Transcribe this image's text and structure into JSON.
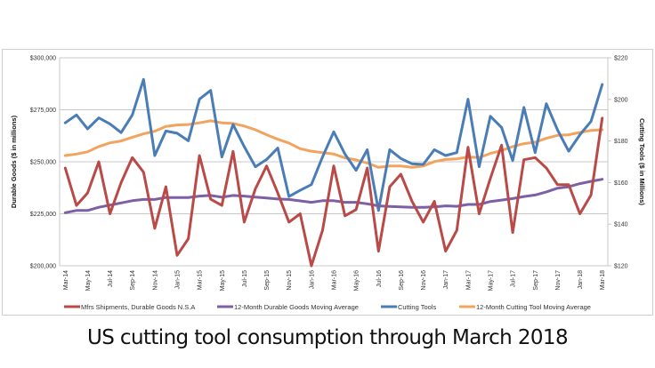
{
  "caption": "US cutting tool consumption through March 2018",
  "chart_data": {
    "type": "line",
    "title": "",
    "categories": [
      "Mar-14",
      "Apr-14",
      "May-14",
      "Jun-14",
      "Jul-14",
      "Aug-14",
      "Sep-14",
      "Oct-14",
      "Nov-14",
      "Dec-14",
      "Jan-15",
      "Feb-15",
      "Mar-15",
      "Apr-15",
      "May-15",
      "Jun-15",
      "Jul-15",
      "Aug-15",
      "Sep-15",
      "Oct-15",
      "Nov-15",
      "Dec-15",
      "Jan-16",
      "Feb-16",
      "Mar-16",
      "Apr-16",
      "May-16",
      "Jun-16",
      "Jul-16",
      "Aug-16",
      "Sep-16",
      "Oct-16",
      "Nov-16",
      "Dec-16",
      "Jan-17",
      "Feb-17",
      "Mar-17",
      "Apr-17",
      "May-17",
      "Jun-17",
      "Jul-17",
      "Aug-17",
      "Sep-17",
      "Oct-17",
      "Nov-17",
      "Dec-17",
      "Jan-18",
      "Feb-18",
      "Mar-18"
    ],
    "x_tick_labels": [
      "Mar-14",
      "May-14",
      "Jul-14",
      "Sep-14",
      "Nov-14",
      "Jan-15",
      "Mar-15",
      "May-15",
      "Jul-15",
      "Sep-15",
      "Nov-15",
      "Jan-16",
      "Mar-16",
      "May-16",
      "Jul-16",
      "Sep-16",
      "Nov-16",
      "Jan-17",
      "Mar-17",
      "May-17",
      "Jul-17",
      "Sep-17",
      "Nov-17",
      "Jan-18",
      "Mar-18"
    ],
    "y_left": {
      "label": "Durable Goods ($ in millions)",
      "range": [
        200000,
        300000
      ],
      "tick_labels": [
        "$300,000",
        "$275,000",
        "$250,000",
        "$225,000",
        "$200,000"
      ],
      "ticks": [
        300000,
        275000,
        250000,
        225000,
        200000
      ]
    },
    "y_right": {
      "label": "Cutting Tools ($ in Millions)",
      "range": [
        120,
        220
      ],
      "tick_labels": [
        "$220",
        "$200",
        "$180",
        "$160",
        "$140",
        "$120"
      ],
      "ticks": [
        220,
        200,
        180,
        160,
        140,
        120
      ]
    },
    "grid": true,
    "legend_placement": "bottom",
    "series": [
      {
        "name": "Mfrs Shipments, Durable Goods N.S.A",
        "axis": "left",
        "color": "#b94a48",
        "values": [
          247000,
          229000,
          235000,
          250000,
          225000,
          240000,
          252000,
          245000,
          218000,
          238000,
          205000,
          213000,
          253000,
          232000,
          229000,
          255000,
          221000,
          237000,
          248000,
          235000,
          221000,
          225000,
          200000,
          217000,
          248000,
          224000,
          227000,
          247000,
          207000,
          238000,
          244000,
          231000,
          221000,
          231000,
          207000,
          217000,
          257000,
          225000,
          242000,
          258000,
          216000,
          251000,
          252000,
          247000,
          239000,
          239000,
          225000,
          234000,
          271000
        ]
      },
      {
        "name": "12-Month Durable Goods Moving Average",
        "axis": "left",
        "color": "#7d5fa6",
        "values": [
          225500,
          226600,
          226600,
          228100,
          229200,
          230200,
          231300,
          231900,
          231900,
          232800,
          232800,
          232800,
          233500,
          233800,
          233000,
          233800,
          233500,
          233000,
          232600,
          232100,
          231900,
          231200,
          230500,
          231300,
          231300,
          230500,
          230500,
          229800,
          228800,
          228500,
          228300,
          228100,
          228100,
          228300,
          228800,
          228600,
          229500,
          229500,
          230900,
          231600,
          232300,
          233300,
          234000,
          235500,
          237300,
          238000,
          239500,
          240600,
          241600
        ]
      },
      {
        "name": "Cutting Tools",
        "axis": "right",
        "color": "#4a7db6",
        "values": [
          188.7,
          192.5,
          185.8,
          191.1,
          188.2,
          184.0,
          192.5,
          209.6,
          173.0,
          184.8,
          183.7,
          180.1,
          200.1,
          204.3,
          172.3,
          187.9,
          177.3,
          167.6,
          171.1,
          176.6,
          153.3,
          156.3,
          159.0,
          172.3,
          184.4,
          173.7,
          165.9,
          175.8,
          146.6,
          175.8,
          171.6,
          169.0,
          168.7,
          175.8,
          173.0,
          174.4,
          200.1,
          167.6,
          191.9,
          186.5,
          170.6,
          196.1,
          174.4,
          197.9,
          185.4,
          175.1,
          183.0,
          189.4,
          207.2
        ]
      },
      {
        "name": "12-Month Cutting Tool Moving Average",
        "axis": "right",
        "color": "#f2a45e",
        "values": [
          173.0,
          173.7,
          174.8,
          177.3,
          179.1,
          180.0,
          181.8,
          183.4,
          184.7,
          187.0,
          187.7,
          187.9,
          188.7,
          189.7,
          188.7,
          188.4,
          187.2,
          185.4,
          183.0,
          180.8,
          179.0,
          176.3,
          175.1,
          174.4,
          173.7,
          171.9,
          170.9,
          169.4,
          167.3,
          168.0,
          168.0,
          167.3,
          168.0,
          170.1,
          171.1,
          171.4,
          172.3,
          172.0,
          174.0,
          175.4,
          177.3,
          178.7,
          179.4,
          181.3,
          182.7,
          183.0,
          184.1,
          185.1,
          185.4
        ]
      }
    ]
  }
}
